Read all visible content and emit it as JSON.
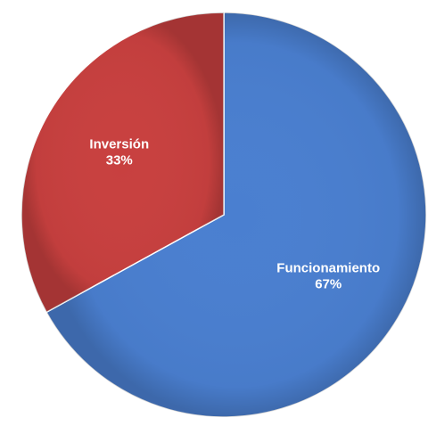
{
  "chart_data": {
    "type": "pie",
    "categories": [
      "Funcionamiento",
      "Inversión"
    ],
    "values": [
      67,
      33
    ],
    "value_labels": [
      "67%",
      "33%"
    ],
    "colors": [
      "#4a7fd0",
      "#c8403f"
    ]
  }
}
